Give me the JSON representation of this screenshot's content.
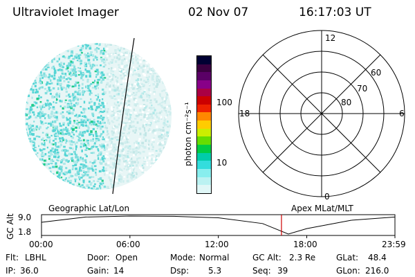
{
  "header": {
    "title": "Ultraviolet Imager",
    "date": "02 Nov 07",
    "time": "16:17:03 UT"
  },
  "colorbar": {
    "label": "photon cm⁻²s⁻¹",
    "ticks": [
      "100",
      "10"
    ],
    "colors": [
      "#000033",
      "#3b0040",
      "#5a0066",
      "#880088",
      "#aa0044",
      "#cc0000",
      "#ee2200",
      "#ff8800",
      "#ffcc00",
      "#ccee00",
      "#66dd00",
      "#00cc44",
      "#00ccaa",
      "#33dddd",
      "#88eeee",
      "#bbf2f2",
      "#e0f7f7"
    ]
  },
  "polar": {
    "mlt_labels": {
      "top": "12",
      "bottom": "0",
      "left": "18",
      "right": "6"
    },
    "lat_labels": [
      "60",
      "70",
      "80"
    ]
  },
  "timeline": {
    "left_title": "Geographic Lat/Lon",
    "right_title": "Apex MLat/MLT",
    "y_label": "GC Alt",
    "y_ticks": [
      "9.0",
      "1.8"
    ],
    "x_ticks": [
      "00:00",
      "06:00",
      "12:00",
      "18:00",
      "23:59"
    ],
    "marker_color": "#cc0000"
  },
  "chart_data": {
    "type": "line",
    "title": "GC Alt",
    "xlabel": "",
    "ylabel": "GC Alt",
    "x": [
      "00:00",
      "03:00",
      "06:00",
      "09:00",
      "12:00",
      "15:00",
      "16:45",
      "18:00",
      "21:00",
      "23:59"
    ],
    "series": [
      {
        "values": [
          6.5,
          8.6,
          9.0,
          8.9,
          8.3,
          6.0,
          1.8,
          4.0,
          7.3,
          8.6
        ]
      }
    ],
    "ylim": [
      1.8,
      9.0
    ],
    "marker_time": "16:17"
  },
  "info": {
    "flt_label": "Flt:",
    "flt_value": "LBHL",
    "door_label": "Door:",
    "door_value": "Open",
    "mode_label": "Mode:",
    "mode_value": "Normal",
    "gcalt_label": "GC Alt:",
    "gcalt_value": "2.3 Re",
    "glat_label": "GLat:",
    "glat_value": "48.4",
    "ip_label": "IP:",
    "ip_value": "36.0",
    "gain_label": "Gain:",
    "gain_value": "14",
    "dsp_label": "Dsp:",
    "dsp_value": "5.3",
    "seq_label": "Seq:",
    "seq_value": "39",
    "glon_label": "GLon:",
    "glon_value": "216.0"
  }
}
